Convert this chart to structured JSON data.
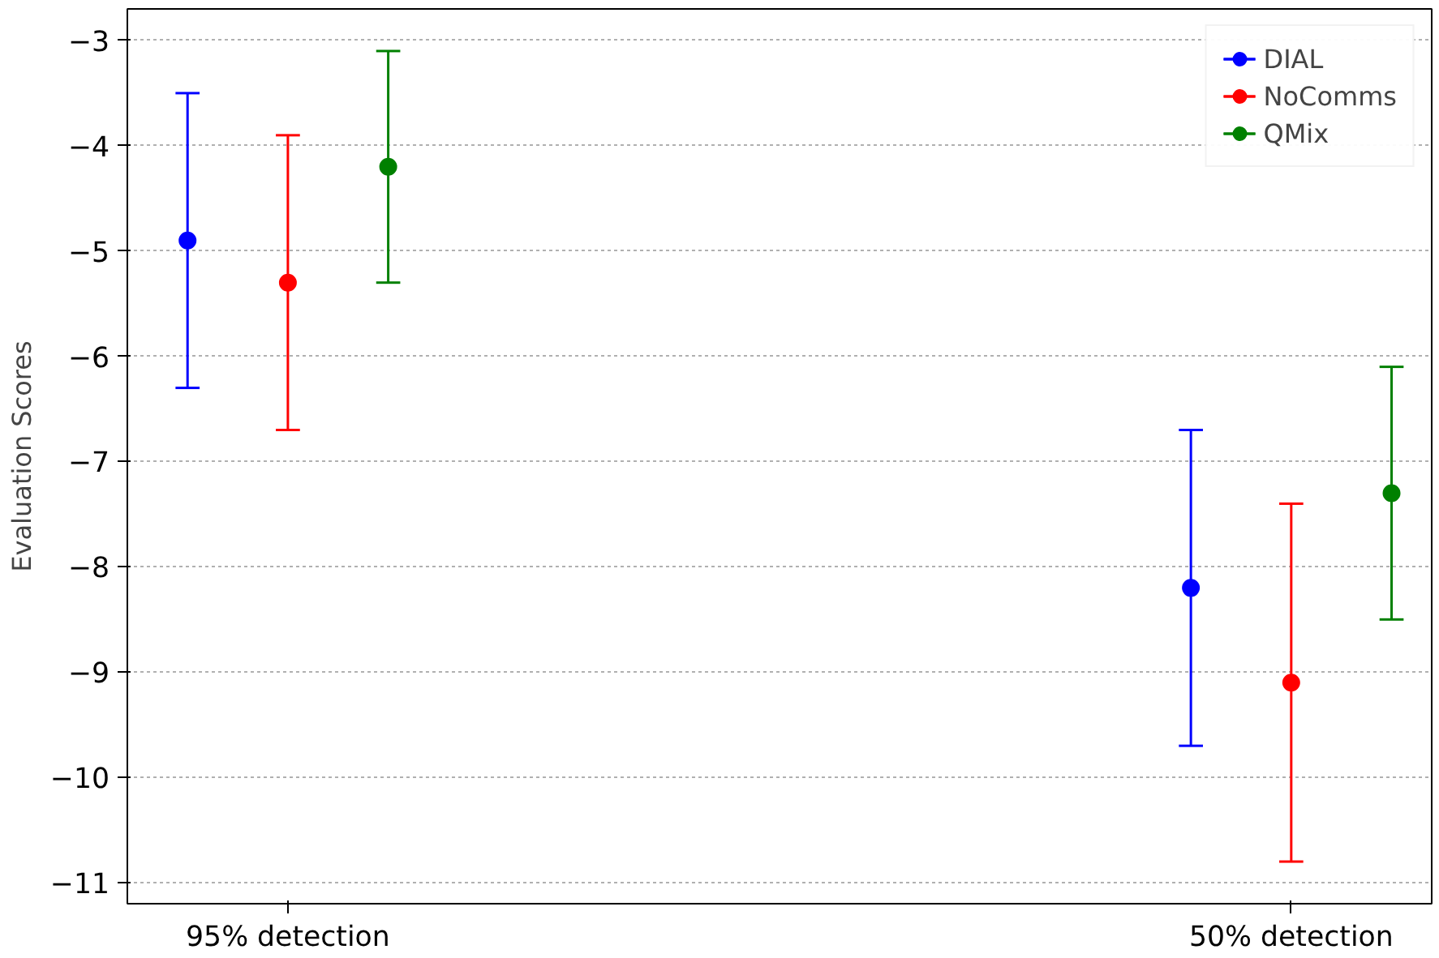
{
  "chart_data": {
    "type": "scatter",
    "ylabel": "Evaluation Scores",
    "categories": [
      "95% detection",
      "50% detection"
    ],
    "series": [
      {
        "name": "DIAL",
        "color": "#0000ff",
        "values": [
          -4.9,
          -8.2
        ],
        "errors": [
          1.4,
          1.5
        ]
      },
      {
        "name": "NoComms",
        "color": "#ff0000",
        "values": [
          -5.3,
          -9.1
        ],
        "errors": [
          1.4,
          1.7
        ]
      },
      {
        "name": "QMix",
        "color": "#008000",
        "values": [
          -4.2,
          -7.3
        ],
        "errors": [
          1.1,
          1.2
        ]
      }
    ],
    "ylim": [
      -11.2,
      -2.7
    ],
    "yticks": [
      -11,
      -10,
      -9,
      -8,
      -7,
      -6,
      -5,
      -4,
      -3
    ],
    "grid": "y",
    "legend": "top right",
    "marker": "circle"
  }
}
